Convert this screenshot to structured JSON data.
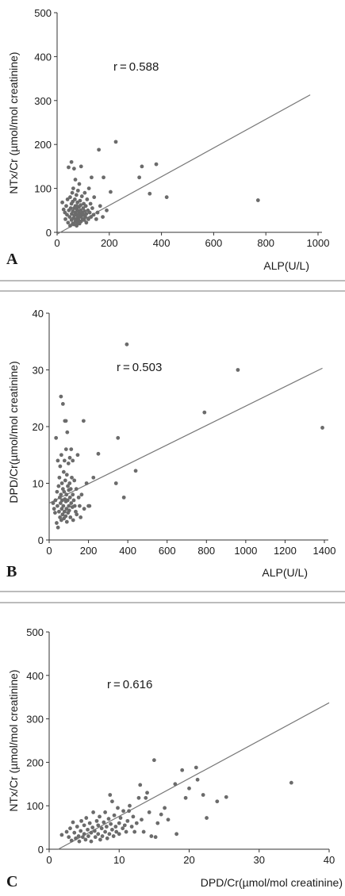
{
  "colors": {
    "point": "#6b6b6b",
    "line": "#777777",
    "axis": "#333333"
  },
  "chart_data": [
    {
      "type": "scatter",
      "panel": "A",
      "xlabel": "ALP(U/L)",
      "ylabel": "NTx/Cr (µmol/mol creatinine)",
      "annotation": "r = 0.588",
      "xlim": [
        0,
        1000
      ],
      "ylim": [
        0,
        500
      ],
      "xticks": [
        0,
        200,
        400,
        600,
        800,
        1000
      ],
      "yticks": [
        0,
        100,
        200,
        300,
        400,
        500
      ],
      "regression": {
        "x": [
          0,
          970
        ],
        "y": [
          -4,
          313
        ]
      },
      "points": [
        [
          20,
          68
        ],
        [
          25,
          52
        ],
        [
          30,
          45
        ],
        [
          32,
          30
        ],
        [
          35,
          60
        ],
        [
          38,
          40
        ],
        [
          40,
          75
        ],
        [
          42,
          22
        ],
        [
          44,
          148
        ],
        [
          45,
          50
        ],
        [
          48,
          35
        ],
        [
          50,
          15
        ],
        [
          50,
          80
        ],
        [
          52,
          55
        ],
        [
          55,
          28
        ],
        [
          55,
          65
        ],
        [
          56,
          42
        ],
        [
          58,
          90
        ],
        [
          60,
          20
        ],
        [
          60,
          48
        ],
        [
          60,
          70
        ],
        [
          62,
          32
        ],
        [
          62,
          100
        ],
        [
          65,
          18
        ],
        [
          65,
          55
        ],
        [
          66,
          38
        ],
        [
          68,
          75
        ],
        [
          70,
          25
        ],
        [
          70,
          45
        ],
        [
          70,
          60
        ],
        [
          70,
          120
        ],
        [
          72,
          30
        ],
        [
          74,
          85
        ],
        [
          75,
          15
        ],
        [
          75,
          40
        ],
        [
          76,
          52
        ],
        [
          78,
          68
        ],
        [
          78,
          22
        ],
        [
          80,
          35
        ],
        [
          80,
          95
        ],
        [
          82,
          48
        ],
        [
          82,
          28
        ],
        [
          84,
          58
        ],
        [
          85,
          42
        ],
        [
          85,
          110
        ],
        [
          86,
          20
        ],
        [
          88,
          72
        ],
        [
          88,
          35
        ],
        [
          90,
          50
        ],
        [
          90,
          62
        ],
        [
          92,
          25
        ],
        [
          92,
          150
        ],
        [
          94,
          38
        ],
        [
          95,
          82
        ],
        [
          96,
          45
        ],
        [
          98,
          30
        ],
        [
          100,
          55
        ],
        [
          100,
          40
        ],
        [
          102,
          65
        ],
        [
          104,
          28
        ],
        [
          105,
          48
        ],
        [
          106,
          90
        ],
        [
          108,
          35
        ],
        [
          110,
          60
        ],
        [
          112,
          22
        ],
        [
          112,
          42
        ],
        [
          115,
          75
        ],
        [
          118,
          50
        ],
        [
          120,
          30
        ],
        [
          122,
          100
        ],
        [
          125,
          45
        ],
        [
          128,
          65
        ],
        [
          130,
          35
        ],
        [
          132,
          125
        ],
        [
          135,
          55
        ],
        [
          140,
          40
        ],
        [
          142,
          80
        ],
        [
          150,
          30
        ],
        [
          155,
          45
        ],
        [
          160,
          188
        ],
        [
          165,
          60
        ],
        [
          175,
          35
        ],
        [
          178,
          125
        ],
        [
          190,
          50
        ],
        [
          205,
          92
        ],
        [
          225,
          206
        ],
        [
          315,
          125
        ],
        [
          325,
          150
        ],
        [
          355,
          88
        ],
        [
          380,
          155
        ],
        [
          420,
          80
        ],
        [
          770,
          73
        ],
        [
          55,
          160
        ],
        [
          65,
          145
        ],
        [
          75,
          60
        ]
      ]
    },
    {
      "type": "scatter",
      "panel": "B",
      "xlabel": "ALP(U/L)",
      "ylabel": "DPD/Cr(µmol/mol creatinine)",
      "annotation": "r = 0.503",
      "xlim": [
        0,
        1400
      ],
      "ylim": [
        0,
        40
      ],
      "xticks": [
        0,
        200,
        400,
        600,
        800,
        1000,
        1200,
        1400
      ],
      "yticks": [
        0,
        10,
        20,
        30,
        40
      ],
      "regression": {
        "x": [
          0,
          1390
        ],
        "y": [
          6.5,
          30.3
        ]
      },
      "points": [
        [
          20,
          6.5
        ],
        [
          25,
          5.5
        ],
        [
          30,
          4.8
        ],
        [
          32,
          7
        ],
        [
          35,
          18
        ],
        [
          38,
          3
        ],
        [
          40,
          8.5
        ],
        [
          42,
          6
        ],
        [
          44,
          14
        ],
        [
          45,
          2.2
        ],
        [
          48,
          9.5
        ],
        [
          50,
          5
        ],
        [
          52,
          11
        ],
        [
          54,
          7.5
        ],
        [
          55,
          4
        ],
        [
          56,
          13
        ],
        [
          58,
          6.5
        ],
        [
          60,
          25.3
        ],
        [
          60,
          8
        ],
        [
          62,
          3.5
        ],
        [
          62,
          15
        ],
        [
          64,
          5.5
        ],
        [
          65,
          10
        ],
        [
          66,
          7
        ],
        [
          68,
          4.5
        ],
        [
          70,
          24
        ],
        [
          70,
          9
        ],
        [
          72,
          6
        ],
        [
          74,
          12
        ],
        [
          75,
          3.8
        ],
        [
          76,
          8.5
        ],
        [
          78,
          14
        ],
        [
          78,
          5
        ],
        [
          80,
          7.2
        ],
        [
          80,
          21
        ],
        [
          82,
          10.5
        ],
        [
          84,
          4.2
        ],
        [
          85,
          6.8
        ],
        [
          86,
          16
        ],
        [
          88,
          8
        ],
        [
          88,
          5.5
        ],
        [
          90,
          11.5
        ],
        [
          90,
          3.2
        ],
        [
          92,
          19
        ],
        [
          94,
          7
        ],
        [
          95,
          9.5
        ],
        [
          96,
          4.8
        ],
        [
          98,
          13.5
        ],
        [
          100,
          6
        ],
        [
          100,
          8.8
        ],
        [
          102,
          5.2
        ],
        [
          104,
          10
        ],
        [
          105,
          14.5
        ],
        [
          106,
          7.5
        ],
        [
          108,
          4
        ],
        [
          110,
          9
        ],
        [
          112,
          6.5
        ],
        [
          112,
          16
        ],
        [
          115,
          11
        ],
        [
          118,
          5.8
        ],
        [
          120,
          8
        ],
        [
          122,
          3.5
        ],
        [
          125,
          7
        ],
        [
          128,
          10.5
        ],
        [
          130,
          6
        ],
        [
          135,
          5
        ],
        [
          138,
          9
        ],
        [
          140,
          4.5
        ],
        [
          145,
          15
        ],
        [
          150,
          7.5
        ],
        [
          155,
          6
        ],
        [
          160,
          4
        ],
        [
          165,
          8
        ],
        [
          175,
          21
        ],
        [
          178,
          5.5
        ],
        [
          190,
          10
        ],
        [
          205,
          6
        ],
        [
          225,
          11
        ],
        [
          250,
          15.2
        ],
        [
          340,
          10
        ],
        [
          350,
          18
        ],
        [
          380,
          7.5
        ],
        [
          395,
          34.5
        ],
        [
          440,
          12.2
        ],
        [
          790,
          22.5
        ],
        [
          960,
          30
        ],
        [
          1390,
          19.8
        ],
        [
          200,
          6
        ],
        [
          85,
          21
        ],
        [
          120,
          14
        ]
      ]
    },
    {
      "type": "scatter",
      "panel": "C",
      "xlabel": "DPD/Cr(µmol/mol creatinine)",
      "ylabel": "NTx/Cr (µmol/mol creatinine)",
      "annotation": "r = 0.616",
      "xlim": [
        0,
        40
      ],
      "ylim": [
        0,
        500
      ],
      "xticks": [
        0,
        10,
        20,
        30,
        40
      ],
      "yticks": [
        0,
        100,
        200,
        300,
        400,
        500
      ],
      "regression": {
        "x": [
          1.3,
          40
        ],
        "y": [
          0,
          337
        ]
      },
      "points": [
        [
          1.8,
          33
        ],
        [
          2.8,
          28
        ],
        [
          3,
          48
        ],
        [
          3.2,
          20
        ],
        [
          3.4,
          62
        ],
        [
          3.6,
          38
        ],
        [
          3.8,
          25
        ],
        [
          4,
          52
        ],
        [
          4.2,
          30
        ],
        [
          4.3,
          18
        ],
        [
          4.5,
          42
        ],
        [
          4.6,
          65
        ],
        [
          4.8,
          28
        ],
        [
          5,
          55
        ],
        [
          5,
          35
        ],
        [
          5.2,
          22
        ],
        [
          5.3,
          72
        ],
        [
          5.5,
          45
        ],
        [
          5.6,
          30
        ],
        [
          5.8,
          60
        ],
        [
          6,
          38
        ],
        [
          6,
          18
        ],
        [
          6.2,
          50
        ],
        [
          6.3,
          85
        ],
        [
          6.5,
          42
        ],
        [
          6.6,
          28
        ],
        [
          6.8,
          65
        ],
        [
          7,
          35
        ],
        [
          7,
          55
        ],
        [
          7.2,
          75
        ],
        [
          7.3,
          22
        ],
        [
          7.5,
          48
        ],
        [
          7.6,
          30
        ],
        [
          7.8,
          62
        ],
        [
          8,
          40
        ],
        [
          8,
          85
        ],
        [
          8.2,
          52
        ],
        [
          8.3,
          25
        ],
        [
          8.5,
          70
        ],
        [
          8.6,
          35
        ],
        [
          8.8,
          58
        ],
        [
          9,
          45
        ],
        [
          9,
          110
        ],
        [
          9.2,
          30
        ],
        [
          9.3,
          78
        ],
        [
          9.5,
          52
        ],
        [
          9.6,
          40
        ],
        [
          9.8,
          95
        ],
        [
          10,
          60
        ],
        [
          10,
          35
        ],
        [
          10.2,
          72
        ],
        [
          10.5,
          48
        ],
        [
          10.6,
          88
        ],
        [
          10.8,
          55
        ],
        [
          11,
          40
        ],
        [
          11.2,
          65
        ],
        [
          11.5,
          100
        ],
        [
          11.8,
          52
        ],
        [
          12,
          75
        ],
        [
          12.2,
          40
        ],
        [
          12.5,
          60
        ],
        [
          12.8,
          118
        ],
        [
          13,
          148
        ],
        [
          13.2,
          68
        ],
        [
          13.5,
          40
        ],
        [
          13.8,
          118
        ],
        [
          14,
          130
        ],
        [
          14.3,
          85
        ],
        [
          14.6,
          30
        ],
        [
          15,
          205
        ],
        [
          15.2,
          28
        ],
        [
          15.5,
          60
        ],
        [
          16,
          80
        ],
        [
          16.5,
          95
        ],
        [
          17,
          68
        ],
        [
          18,
          150
        ],
        [
          18.2,
          35
        ],
        [
          19,
          182
        ],
        [
          19.5,
          118
        ],
        [
          20,
          140
        ],
        [
          21,
          188
        ],
        [
          21.2,
          160
        ],
        [
          22,
          125
        ],
        [
          22.5,
          72
        ],
        [
          24,
          110
        ],
        [
          25.3,
          120
        ],
        [
          34.6,
          153
        ],
        [
          2.5,
          40
        ],
        [
          8.7,
          125
        ],
        [
          11.4,
          88
        ]
      ]
    }
  ]
}
